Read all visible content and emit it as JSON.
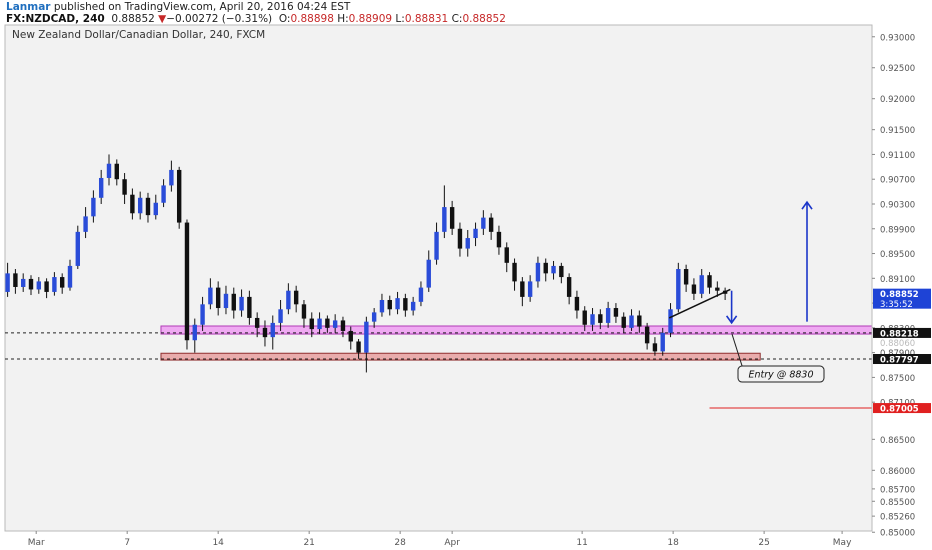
{
  "header": {
    "author": "Lanmar",
    "published": "published on TradingView.com, April 20, 2016 04:24 EST",
    "symbol": "FX:NZDCAD, 240",
    "last": "0.88852",
    "change": "−0.00272 (−0.31%)",
    "o_label": "O:",
    "o": "0.88898",
    "h_label": "H:",
    "h": "0.88909",
    "l_label": "L:",
    "l": "0.88831",
    "c_label": "C:",
    "c": "0.88852",
    "down_glyph": "▼"
  },
  "chart_data": {
    "type": "candlestick",
    "title": "New Zealand Dollar/Canadian Dollar, 240, FXCM",
    "ylim": [
      0.8502,
      0.9319
    ],
    "y_ticks": [
      "0.93000",
      "0.92500",
      "0.92000",
      "0.91500",
      "0.91100",
      "0.90700",
      "0.90300",
      "0.89900",
      "0.89500",
      "0.89100",
      "0.88700",
      "0.88300",
      "0.87900",
      "0.87500",
      "0.87100",
      "0.86500",
      "0.86000",
      "0.85700",
      "0.85500",
      "0.85260",
      "0.85000"
    ],
    "x_ticks": [
      {
        "label": "Mar",
        "day": 0
      },
      {
        "label": "7",
        "day": 7
      },
      {
        "label": "14",
        "day": 14
      },
      {
        "label": "21",
        "day": 21
      },
      {
        "label": "28",
        "day": 28
      },
      {
        "label": "Apr",
        "day": 32
      },
      {
        "label": "11",
        "day": 42
      },
      {
        "label": "18",
        "day": 49
      },
      {
        "label": "25",
        "day": 56
      },
      {
        "label": "May",
        "day": 62
      }
    ],
    "x_range_days": [
      -2.4,
      64.3
    ],
    "price_badges": [
      {
        "value": "0.88852",
        "sub": "3:35:52",
        "color": "#1e43d6",
        "price": 0.88852
      },
      {
        "value": "0.88218",
        "color": "#111111",
        "price": 0.88218
      },
      {
        "value": "0.87797",
        "color": "#111111",
        "price": 0.87797
      },
      {
        "value": "0.87005",
        "color": "#e02020",
        "price": 0.87005
      }
    ],
    "hidden_label": "0.88060",
    "dashed_levels": [
      0.88218,
      0.87797
    ],
    "zones": [
      {
        "price_top": 0.8833,
        "price_bottom": 0.882,
        "day_start": 9.6,
        "day_end": 64.3,
        "fill": "#ee9cf2",
        "stroke": "#b03cb6"
      },
      {
        "price_top": 0.8789,
        "price_bottom": 0.8778,
        "day_start": 9.6,
        "day_end": 55.7,
        "fill": "#e8a0a0",
        "stroke": "#8f2f2f"
      }
    ],
    "red_line": {
      "price": 0.87005,
      "day_start": 51.8,
      "day_end": 64.3
    },
    "annotation": {
      "text": "Entry @ 8830"
    },
    "arrows": [
      {
        "day": 59.3,
        "from": 0.884,
        "to": 0.9033,
        "color": "#1a35c9"
      },
      {
        "day": 53.5,
        "from": 0.889,
        "to": 0.8838,
        "color": "#1a35c9"
      }
    ],
    "trendline": {
      "day_start": 48.7,
      "price_start": 0.8846,
      "day_end": 53.4,
      "price_end": 0.8892
    },
    "series": [
      {
        "day": -2.2,
        "o": 0.8888,
        "c": 0.8918,
        "h": 0.8935,
        "l": 0.888
      },
      {
        "day": -1.6,
        "o": 0.8918,
        "c": 0.8896,
        "h": 0.8925,
        "l": 0.8885
      },
      {
        "day": -1.0,
        "o": 0.8896,
        "c": 0.8909,
        "h": 0.8918,
        "l": 0.8888
      },
      {
        "day": -0.4,
        "o": 0.8909,
        "c": 0.8892,
        "h": 0.8915,
        "l": 0.8883
      },
      {
        "day": 0.2,
        "o": 0.8892,
        "c": 0.8905,
        "h": 0.8912,
        "l": 0.8885
      },
      {
        "day": 0.8,
        "o": 0.8905,
        "c": 0.8888,
        "h": 0.891,
        "l": 0.8878
      },
      {
        "day": 1.4,
        "o": 0.8888,
        "c": 0.8912,
        "h": 0.892,
        "l": 0.8882
      },
      {
        "day": 2.0,
        "o": 0.8912,
        "c": 0.8895,
        "h": 0.8918,
        "l": 0.8885
      },
      {
        "day": 2.6,
        "o": 0.8895,
        "c": 0.893,
        "h": 0.894,
        "l": 0.889
      },
      {
        "day": 3.2,
        "o": 0.893,
        "c": 0.8985,
        "h": 0.8995,
        "l": 0.8925
      },
      {
        "day": 3.8,
        "o": 0.8985,
        "c": 0.901,
        "h": 0.9025,
        "l": 0.8975
      },
      {
        "day": 4.4,
        "o": 0.901,
        "c": 0.904,
        "h": 0.9052,
        "l": 0.9
      },
      {
        "day": 5.0,
        "o": 0.904,
        "c": 0.9072,
        "h": 0.9085,
        "l": 0.903
      },
      {
        "day": 5.6,
        "o": 0.9072,
        "c": 0.9095,
        "h": 0.911,
        "l": 0.906
      },
      {
        "day": 6.2,
        "o": 0.9095,
        "c": 0.907,
        "h": 0.9102,
        "l": 0.906
      },
      {
        "day": 6.8,
        "o": 0.907,
        "c": 0.9045,
        "h": 0.908,
        "l": 0.903
      },
      {
        "day": 7.4,
        "o": 0.9045,
        "c": 0.9015,
        "h": 0.9055,
        "l": 0.9005
      },
      {
        "day": 8.0,
        "o": 0.9015,
        "c": 0.904,
        "h": 0.905,
        "l": 0.9005
      },
      {
        "day": 8.6,
        "o": 0.904,
        "c": 0.9012,
        "h": 0.9048,
        "l": 0.9
      },
      {
        "day": 9.2,
        "o": 0.9012,
        "c": 0.9032,
        "h": 0.9045,
        "l": 0.9005
      },
      {
        "day": 9.8,
        "o": 0.9032,
        "c": 0.906,
        "h": 0.907,
        "l": 0.9025
      },
      {
        "day": 10.4,
        "o": 0.906,
        "c": 0.9085,
        "h": 0.91,
        "l": 0.905
      },
      {
        "day": 11.0,
        "o": 0.9085,
        "c": 0.9,
        "h": 0.909,
        "l": 0.899
      },
      {
        "day": 11.6,
        "o": 0.9,
        "c": 0.881,
        "h": 0.9005,
        "l": 0.8795
      },
      {
        "day": 12.2,
        "o": 0.881,
        "c": 0.8835,
        "h": 0.8845,
        "l": 0.879
      },
      {
        "day": 12.8,
        "o": 0.8835,
        "c": 0.8868,
        "h": 0.888,
        "l": 0.8825
      },
      {
        "day": 13.4,
        "o": 0.8868,
        "c": 0.8895,
        "h": 0.891,
        "l": 0.886
      },
      {
        "day": 14.0,
        "o": 0.8895,
        "c": 0.8862,
        "h": 0.8905,
        "l": 0.885
      },
      {
        "day": 14.6,
        "o": 0.8862,
        "c": 0.8885,
        "h": 0.8898,
        "l": 0.8852
      },
      {
        "day": 15.2,
        "o": 0.8885,
        "c": 0.8858,
        "h": 0.8895,
        "l": 0.8845
      },
      {
        "day": 15.8,
        "o": 0.8858,
        "c": 0.888,
        "h": 0.8892,
        "l": 0.8848
      },
      {
        "day": 16.4,
        "o": 0.888,
        "c": 0.8846,
        "h": 0.889,
        "l": 0.8835
      },
      {
        "day": 17.0,
        "o": 0.8846,
        "c": 0.883,
        "h": 0.8855,
        "l": 0.8815
      },
      {
        "day": 17.6,
        "o": 0.883,
        "c": 0.8815,
        "h": 0.8842,
        "l": 0.88
      },
      {
        "day": 18.2,
        "o": 0.8815,
        "c": 0.8838,
        "h": 0.885,
        "l": 0.8795
      },
      {
        "day": 18.8,
        "o": 0.8838,
        "c": 0.886,
        "h": 0.8875,
        "l": 0.8825
      },
      {
        "day": 19.4,
        "o": 0.886,
        "c": 0.889,
        "h": 0.8902,
        "l": 0.8852
      },
      {
        "day": 20.0,
        "o": 0.889,
        "c": 0.8868,
        "h": 0.8898,
        "l": 0.8855
      },
      {
        "day": 20.6,
        "o": 0.8868,
        "c": 0.8845,
        "h": 0.8875,
        "l": 0.883
      },
      {
        "day": 21.2,
        "o": 0.8845,
        "c": 0.8828,
        "h": 0.8855,
        "l": 0.8815
      },
      {
        "day": 21.8,
        "o": 0.8828,
        "c": 0.8845,
        "h": 0.8855,
        "l": 0.882
      },
      {
        "day": 22.4,
        "o": 0.8845,
        "c": 0.883,
        "h": 0.885,
        "l": 0.8822
      },
      {
        "day": 23.0,
        "o": 0.883,
        "c": 0.8842,
        "h": 0.8852,
        "l": 0.8822
      },
      {
        "day": 23.6,
        "o": 0.8842,
        "c": 0.8825,
        "h": 0.8848,
        "l": 0.8815
      },
      {
        "day": 24.2,
        "o": 0.8825,
        "c": 0.8808,
        "h": 0.8832,
        "l": 0.8795
      },
      {
        "day": 24.8,
        "o": 0.8808,
        "c": 0.879,
        "h": 0.8812,
        "l": 0.878
      },
      {
        "day": 25.4,
        "o": 0.879,
        "c": 0.884,
        "h": 0.8848,
        "l": 0.8758
      },
      {
        "day": 26.0,
        "o": 0.884,
        "c": 0.8855,
        "h": 0.8862,
        "l": 0.883
      },
      {
        "day": 26.6,
        "o": 0.8855,
        "c": 0.8875,
        "h": 0.8885,
        "l": 0.8848
      },
      {
        "day": 27.2,
        "o": 0.8875,
        "c": 0.886,
        "h": 0.8882,
        "l": 0.885
      },
      {
        "day": 27.8,
        "o": 0.886,
        "c": 0.8878,
        "h": 0.8888,
        "l": 0.8852
      },
      {
        "day": 28.4,
        "o": 0.8878,
        "c": 0.8858,
        "h": 0.8885,
        "l": 0.8848
      },
      {
        "day": 29.0,
        "o": 0.8858,
        "c": 0.8872,
        "h": 0.888,
        "l": 0.885
      },
      {
        "day": 29.6,
        "o": 0.8872,
        "c": 0.8895,
        "h": 0.8905,
        "l": 0.8865
      },
      {
        "day": 30.2,
        "o": 0.8895,
        "c": 0.894,
        "h": 0.8955,
        "l": 0.8888
      },
      {
        "day": 30.8,
        "o": 0.894,
        "c": 0.8985,
        "h": 0.9,
        "l": 0.8932
      },
      {
        "day": 31.4,
        "o": 0.8985,
        "c": 0.9025,
        "h": 0.906,
        "l": 0.8975
      },
      {
        "day": 32.0,
        "o": 0.9025,
        "c": 0.899,
        "h": 0.9035,
        "l": 0.898
      },
      {
        "day": 32.6,
        "o": 0.899,
        "c": 0.8958,
        "h": 0.9,
        "l": 0.8945
      },
      {
        "day": 33.2,
        "o": 0.8958,
        "c": 0.8975,
        "h": 0.8988,
        "l": 0.8945
      },
      {
        "day": 33.8,
        "o": 0.8975,
        "c": 0.899,
        "h": 0.9,
        "l": 0.8962
      },
      {
        "day": 34.4,
        "o": 0.899,
        "c": 0.9008,
        "h": 0.902,
        "l": 0.898
      },
      {
        "day": 35.0,
        "o": 0.9008,
        "c": 0.8985,
        "h": 0.9015,
        "l": 0.8972
      },
      {
        "day": 35.6,
        "o": 0.8985,
        "c": 0.896,
        "h": 0.8995,
        "l": 0.8948
      },
      {
        "day": 36.2,
        "o": 0.896,
        "c": 0.8935,
        "h": 0.8968,
        "l": 0.892
      },
      {
        "day": 36.8,
        "o": 0.8935,
        "c": 0.8905,
        "h": 0.8942,
        "l": 0.889
      },
      {
        "day": 37.4,
        "o": 0.8905,
        "c": 0.888,
        "h": 0.8912,
        "l": 0.8865
      },
      {
        "day": 38.0,
        "o": 0.888,
        "c": 0.8905,
        "h": 0.8915,
        "l": 0.8872
      },
      {
        "day": 38.6,
        "o": 0.8905,
        "c": 0.8935,
        "h": 0.8945,
        "l": 0.8895
      },
      {
        "day": 39.2,
        "o": 0.8935,
        "c": 0.8918,
        "h": 0.8942,
        "l": 0.8905
      },
      {
        "day": 39.8,
        "o": 0.8918,
        "c": 0.893,
        "h": 0.8938,
        "l": 0.8908
      },
      {
        "day": 40.4,
        "o": 0.893,
        "c": 0.8912,
        "h": 0.8935,
        "l": 0.8902
      },
      {
        "day": 41.0,
        "o": 0.8912,
        "c": 0.888,
        "h": 0.8918,
        "l": 0.8868
      },
      {
        "day": 41.6,
        "o": 0.888,
        "c": 0.8858,
        "h": 0.889,
        "l": 0.8845
      },
      {
        "day": 42.2,
        "o": 0.8858,
        "c": 0.8835,
        "h": 0.8865,
        "l": 0.8825
      },
      {
        "day": 42.8,
        "o": 0.8835,
        "c": 0.8852,
        "h": 0.8862,
        "l": 0.8825
      },
      {
        "day": 43.4,
        "o": 0.8852,
        "c": 0.8838,
        "h": 0.886,
        "l": 0.8828
      },
      {
        "day": 44.0,
        "o": 0.8838,
        "c": 0.8862,
        "h": 0.8872,
        "l": 0.883
      },
      {
        "day": 44.6,
        "o": 0.8862,
        "c": 0.8848,
        "h": 0.887,
        "l": 0.8838
      },
      {
        "day": 45.2,
        "o": 0.8848,
        "c": 0.883,
        "h": 0.8855,
        "l": 0.8822
      },
      {
        "day": 45.8,
        "o": 0.883,
        "c": 0.885,
        "h": 0.886,
        "l": 0.8825
      },
      {
        "day": 46.4,
        "o": 0.885,
        "c": 0.8832,
        "h": 0.8858,
        "l": 0.8822
      },
      {
        "day": 47.0,
        "o": 0.8832,
        "c": 0.8805,
        "h": 0.8838,
        "l": 0.8795
      },
      {
        "day": 47.6,
        "o": 0.8805,
        "c": 0.8792,
        "h": 0.8815,
        "l": 0.8785
      },
      {
        "day": 48.2,
        "o": 0.8792,
        "c": 0.8822,
        "h": 0.883,
        "l": 0.8785
      },
      {
        "day": 48.8,
        "o": 0.8822,
        "c": 0.886,
        "h": 0.887,
        "l": 0.8815
      },
      {
        "day": 49.4,
        "o": 0.886,
        "c": 0.8925,
        "h": 0.8935,
        "l": 0.8855
      },
      {
        "day": 50.0,
        "o": 0.8925,
        "c": 0.89,
        "h": 0.8932,
        "l": 0.8888
      },
      {
        "day": 50.6,
        "o": 0.89,
        "c": 0.8885,
        "h": 0.891,
        "l": 0.8875
      },
      {
        "day": 51.2,
        "o": 0.8885,
        "c": 0.8915,
        "h": 0.8925,
        "l": 0.8878
      },
      {
        "day": 51.8,
        "o": 0.8915,
        "c": 0.8895,
        "h": 0.892,
        "l": 0.8885
      },
      {
        "day": 52.4,
        "o": 0.8895,
        "c": 0.889,
        "h": 0.8905,
        "l": 0.888
      },
      {
        "day": 53.0,
        "o": 0.889,
        "c": 0.8885,
        "h": 0.8895,
        "l": 0.8875
      }
    ]
  }
}
